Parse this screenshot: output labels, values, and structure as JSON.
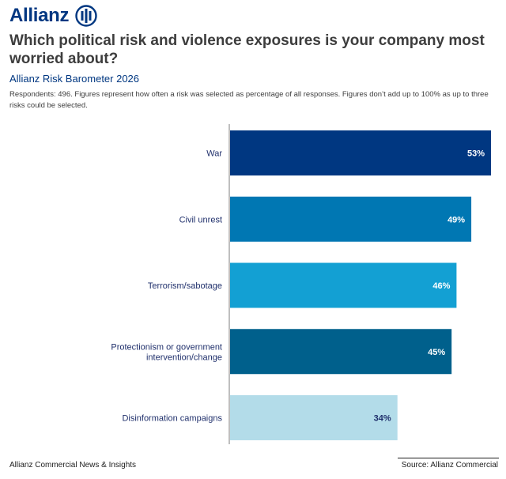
{
  "brand": {
    "name": "Allianz",
    "logo_icon": "allianz-eagle-icon",
    "color": "#003781"
  },
  "title": "Which political risk and violence exposures is your company most worried about?",
  "subtitle": "Allianz Risk Barometer 2026",
  "note": "Respondents: 496. Figures represent how often a risk was selected as percentage of all responses. Figures don’t add up to 100% as up to three risks could be selected.",
  "footer": {
    "left": "Allianz Commercial News & Insights",
    "right": "Source: Allianz Commercial"
  },
  "chart_data": {
    "type": "bar",
    "orientation": "horizontal",
    "categories": [
      "War",
      "Civil unrest",
      "Terrorism/sabotage",
      "Protectionism or government intervention/change",
      "Disinformation campaigns"
    ],
    "category_lines": [
      [
        "War"
      ],
      [
        "Civil unrest"
      ],
      [
        "Terrorism/sabotage"
      ],
      [
        "Protectionism or government",
        "intervention/change"
      ],
      [
        "Disinformation campaigns"
      ]
    ],
    "values": [
      53,
      49,
      46,
      45,
      34
    ],
    "data_labels": [
      "53%",
      "49%",
      "46%",
      "45%",
      "34%"
    ],
    "unit": "%",
    "xlim": [
      0,
      53
    ],
    "grid": false,
    "legend": "none",
    "colors": [
      "#003781",
      "#0077b3",
      "#13a0d3",
      "#00608c",
      "#b3dce9"
    ],
    "label_colors": [
      "#ffffff",
      "#ffffff",
      "#ffffff",
      "#ffffff",
      "#1f2f6b"
    ],
    "axis_color": "#7f7f7f"
  }
}
